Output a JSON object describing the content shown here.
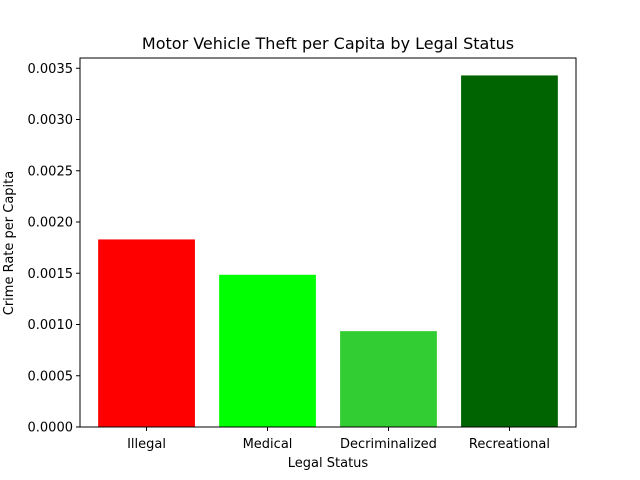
{
  "chart_data": {
    "type": "bar",
    "title": "Motor Vehicle Theft per Capita by Legal Status",
    "xlabel": "Legal Status",
    "ylabel": "Crime Rate per Capita",
    "categories": [
      "Illegal",
      "Medical",
      "Decriminalized",
      "Recreational"
    ],
    "values": [
      0.00183,
      0.001485,
      0.000935,
      0.00343
    ],
    "colors": [
      "#ff0000",
      "#00ff00",
      "#32cd32",
      "#006400"
    ],
    "yticks": [
      0.0,
      0.0005,
      0.001,
      0.0015,
      0.002,
      0.0025,
      0.003,
      0.0035
    ],
    "ytick_labels": [
      "0.0000",
      "0.0005",
      "0.0010",
      "0.0015",
      "0.0020",
      "0.0025",
      "0.0030",
      "0.0035"
    ],
    "ylim": [
      0,
      0.0036
    ],
    "grid": false,
    "legend": false
  }
}
